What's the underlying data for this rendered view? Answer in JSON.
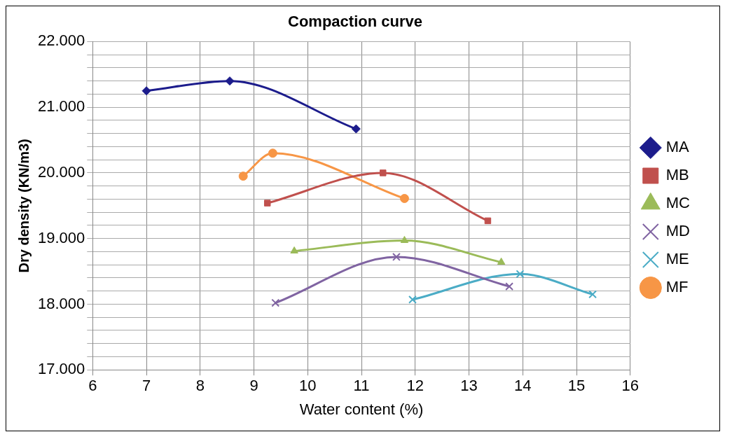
{
  "chart_data": {
    "type": "line",
    "title": "Compaction curve",
    "xlabel": "Water content (%)",
    "ylabel": "Dry density (KN/m3)",
    "xlim": [
      6,
      16
    ],
    "xticks": [
      6,
      7,
      8,
      9,
      10,
      11,
      12,
      13,
      14,
      15,
      16
    ],
    "ylim": [
      17,
      22
    ],
    "yticks": [
      {
        "value": 17,
        "label": "17.000"
      },
      {
        "value": 17.2,
        "label": null
      },
      {
        "value": 17.4,
        "label": null
      },
      {
        "value": 17.6,
        "label": null
      },
      {
        "value": 17.8,
        "label": null
      },
      {
        "value": 18,
        "label": "18.000"
      },
      {
        "value": 18.2,
        "label": null
      },
      {
        "value": 18.4,
        "label": null
      },
      {
        "value": 18.6,
        "label": null
      },
      {
        "value": 18.8,
        "label": null
      },
      {
        "value": 19,
        "label": "19.000"
      },
      {
        "value": 19.2,
        "label": null
      },
      {
        "value": 19.4,
        "label": null
      },
      {
        "value": 19.6,
        "label": null
      },
      {
        "value": 19.8,
        "label": null
      },
      {
        "value": 20,
        "label": "20.000"
      },
      {
        "value": 20.2,
        "label": null
      },
      {
        "value": 20.4,
        "label": null
      },
      {
        "value": 20.6,
        "label": null
      },
      {
        "value": 20.8,
        "label": null
      },
      {
        "value": 21,
        "label": "21.000"
      },
      {
        "value": 21.2,
        "label": null
      },
      {
        "value": 21.4,
        "label": null
      },
      {
        "value": 21.6,
        "label": null
      },
      {
        "value": 21.8,
        "label": null
      },
      {
        "value": 22,
        "label": "22.000"
      }
    ],
    "grid": true,
    "legend": "right",
    "series": [
      {
        "name": "MA",
        "color": "#1c1c8c",
        "marker": "diamond",
        "x": [
          7,
          8.55,
          10.9
        ],
        "values": [
          21.25,
          21.4,
          20.67
        ]
      },
      {
        "name": "MB",
        "color": "#c0504d",
        "marker": "square",
        "x": [
          9.25,
          11.4,
          13.35
        ],
        "values": [
          19.54,
          20.0,
          19.27
        ]
      },
      {
        "name": "MC",
        "color": "#9bbb59",
        "marker": "triangle",
        "x": [
          9.75,
          11.8,
          13.6
        ],
        "values": [
          18.81,
          18.97,
          18.64
        ]
      },
      {
        "name": "MD",
        "color": "#8064a2",
        "marker": "cross",
        "x": [
          9.4,
          11.65,
          13.75
        ],
        "values": [
          18.02,
          18.72,
          18.27
        ]
      },
      {
        "name": "ME",
        "color": "#4bacc6",
        "marker": "cross",
        "x": [
          11.95,
          13.95,
          15.3
        ],
        "values": [
          18.07,
          18.46,
          18.15
        ]
      },
      {
        "name": "MF",
        "color": "#f79646",
        "marker": "circle",
        "x": [
          8.8,
          9.35,
          11.8
        ],
        "values": [
          19.95,
          20.3,
          19.61
        ]
      }
    ]
  }
}
